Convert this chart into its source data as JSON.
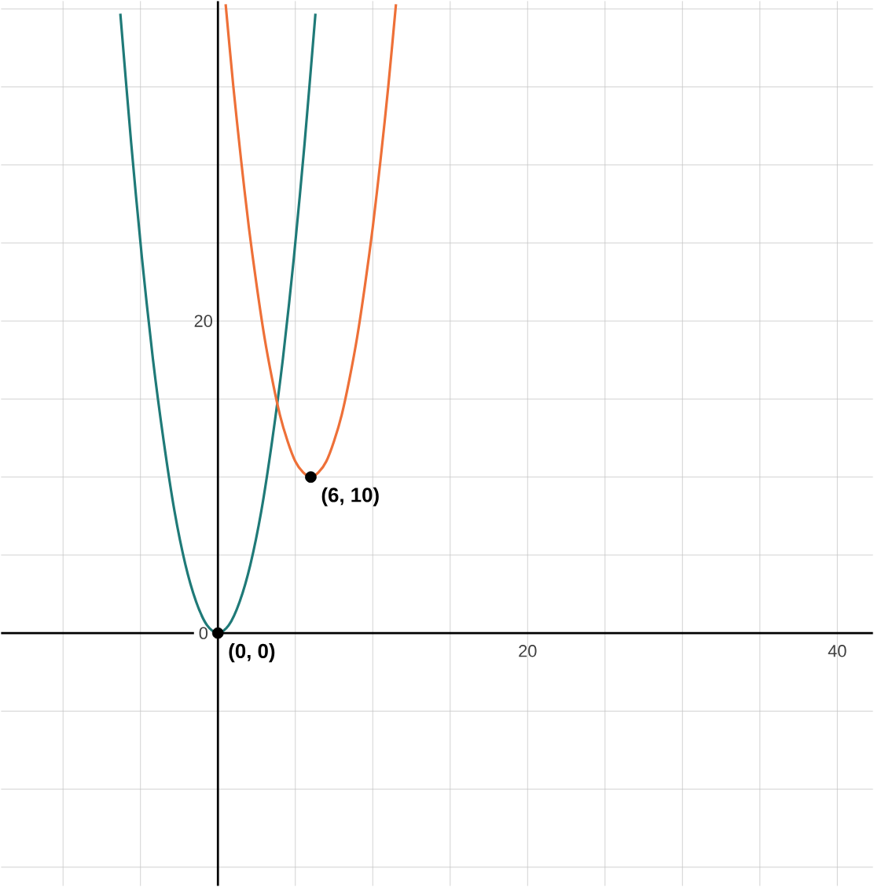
{
  "chart_data": {
    "type": "line",
    "xlim": [
      -14,
      42.3
    ],
    "ylim": [
      -16.2,
      40.5
    ],
    "xticks": [
      {
        "value": -10,
        "label": null
      },
      {
        "value": -5,
        "label": null
      },
      {
        "value": 0,
        "label": null
      },
      {
        "value": 5,
        "label": null
      },
      {
        "value": 10,
        "label": null
      },
      {
        "value": 15,
        "label": null
      },
      {
        "value": 20,
        "label": "20"
      },
      {
        "value": 25,
        "label": null
      },
      {
        "value": 30,
        "label": null
      },
      {
        "value": 35,
        "label": null
      },
      {
        "value": 40,
        "label": "40"
      }
    ],
    "yticks": [
      {
        "value": -15,
        "label": null
      },
      {
        "value": -10,
        "label": null
      },
      {
        "value": -5,
        "label": null
      },
      {
        "value": 0,
        "label": "0"
      },
      {
        "value": 5,
        "label": null
      },
      {
        "value": 10,
        "label": null
      },
      {
        "value": 15,
        "label": null
      },
      {
        "value": 20,
        "label": "20"
      },
      {
        "value": 25,
        "label": null
      },
      {
        "value": 30,
        "label": null
      },
      {
        "value": 35,
        "label": null
      },
      {
        "value": 40,
        "label": null
      }
    ],
    "grid": true,
    "series": [
      {
        "color": "#1f7a78",
        "x": [
          -6.3,
          -5.6,
          -4.9,
          -4.2,
          -3.5,
          -2.8,
          -2.1,
          -1.4,
          -0.7,
          0,
          0.7,
          1.4,
          2.1,
          2.8,
          3.5,
          4.2,
          4.9,
          5.6,
          6.3
        ],
        "values": [
          39.7,
          31.4,
          24,
          17.6,
          12.3,
          7.8,
          4.4,
          2,
          0.5,
          0,
          0.5,
          2,
          4.4,
          7.8,
          12.3,
          17.6,
          24,
          31.4,
          39.7
        ]
      },
      {
        "color": "#ee7038",
        "x": [
          0.5,
          1,
          1.5,
          2,
          2.5,
          3,
          3.5,
          4,
          4.5,
          5,
          5.5,
          6,
          6.5,
          7,
          7.5,
          8,
          8.5,
          9,
          9.5,
          10,
          10.5,
          11,
          11.5
        ],
        "values": [
          40.3,
          35,
          30.3,
          26,
          22.3,
          19,
          16.3,
          14,
          12.3,
          11,
          10.3,
          10,
          10.3,
          11,
          12.3,
          14,
          16.3,
          19,
          22.3,
          26,
          30.3,
          35,
          40.3
        ]
      },
      {
        "type": "scatter",
        "color": "#000000",
        "x": [
          0,
          6
        ],
        "values": [
          0,
          10
        ]
      }
    ],
    "annotations": [
      {
        "text": "**(0, 0)**",
        "x": 0,
        "y": 0
      },
      {
        "text": "**(6, 10)**",
        "x": 6,
        "y": 10
      }
    ]
  }
}
